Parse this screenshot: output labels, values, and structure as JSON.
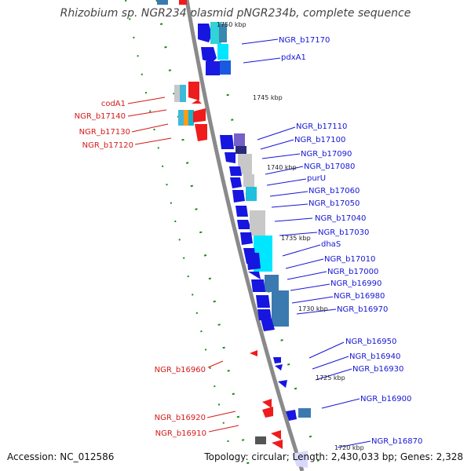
{
  "title": "Rhizobium sp. NGR234 plasmid pNGR234b, complete sequence",
  "accession": "Accession: NC_012586",
  "summary": "Topology: circular; Length: 2,430,033 bp; Genes: 2,328",
  "colors": {
    "forward": "#1515d6",
    "reverse": "#d41a1a",
    "backbone": "#8a8a8a",
    "dots": "#1a8a1a"
  },
  "ticks": [
    "1750 kbp",
    "1745 kbp",
    "1740 kbp",
    "1735 kbp",
    "1730 kbp",
    "1725 kbp",
    "1720 kbp"
  ],
  "forward_labels": [
    "NGR_b17170",
    "pdxA1",
    "NGR_b17110",
    "NGR_b17100",
    "NGR_b17090",
    "NGR_b17080",
    "purU",
    "NGR_b17060",
    "NGR_b17050",
    "NGR_b17040",
    "NGR_b17030",
    "dhaS",
    "NGR_b17010",
    "NGR_b17000",
    "NGR_b16990",
    "NGR_b16980",
    "NGR_b16970",
    "NGR_b16950",
    "NGR_b16940",
    "NGR_b16930",
    "NGR_b16900",
    "NGR_b16870"
  ],
  "reverse_labels": [
    "codA1",
    "NGR_b17140",
    "NGR_b17130",
    "NGR_b17120",
    "NGR_b16960",
    "NGR_b16920",
    "NGR_b16910"
  ]
}
